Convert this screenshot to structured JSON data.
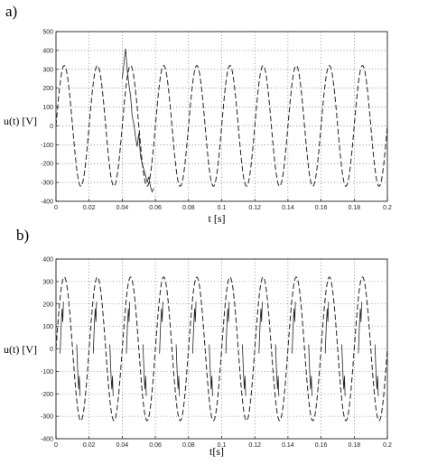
{
  "chart_data": [
    {
      "panel_label": "a)",
      "type": "line",
      "xlabel": "t [s]",
      "ylabel": "u(t) [V]",
      "xlim": [
        0,
        0.2
      ],
      "ylim": [
        -400,
        500
      ],
      "x_ticks": [
        "0",
        "0.02",
        "0.04",
        "0.06",
        "0.08",
        "0.1",
        "0.12",
        "0.14",
        "0.16",
        "0.18",
        "0.2"
      ],
      "y_ticks": [
        "500",
        "400",
        "300",
        "200",
        "100",
        "0",
        "-100",
        "-200",
        "-300",
        "-400"
      ],
      "grid": true,
      "series": [
        {
          "style": "dashed",
          "amplitude": 320,
          "frequency_hz": 50,
          "phase_deg": 0,
          "x_range": [
            0,
            0.2
          ]
        },
        {
          "style": "solid",
          "points": [
            [
              0.04,
              250
            ],
            [
              0.041,
              330
            ],
            [
              0.042,
              410
            ],
            [
              0.043,
              300
            ],
            [
              0.044,
              220
            ],
            [
              0.045,
              160
            ],
            [
              0.046,
              50
            ],
            [
              0.047,
              10
            ],
            [
              0.048,
              -60
            ],
            [
              0.049,
              -110
            ],
            [
              0.05,
              -40
            ],
            [
              0.051,
              -160
            ],
            [
              0.052,
              -200
            ],
            [
              0.053,
              -230
            ],
            [
              0.054,
              -260
            ],
            [
              0.055,
              -300
            ],
            [
              0.056,
              -270
            ],
            [
              0.057,
              -320
            ],
            [
              0.058,
              -350
            ],
            [
              0.059,
              -330
            ]
          ]
        }
      ]
    },
    {
      "panel_label": "b)",
      "type": "line",
      "xlabel": "t[s]",
      "ylabel": "u(t) [V]",
      "xlim": [
        0,
        0.2
      ],
      "ylim": [
        -400,
        400
      ],
      "x_ticks": [
        "0",
        "0.02",
        "0.04",
        "0.06",
        "0.08",
        "0.1",
        "0.12",
        "0.14",
        "0.16",
        "0.18",
        "0.2"
      ],
      "y_ticks": [
        "400",
        "300",
        "200",
        "100",
        "0",
        "-100",
        "-200",
        "-300",
        "-400"
      ],
      "grid": true,
      "series": [
        {
          "style": "dashed",
          "amplitude": 320,
          "frequency_hz": 50,
          "phase_deg": 0,
          "x_range": [
            0,
            0.2
          ]
        },
        {
          "style": "solid",
          "periodic_notch": {
            "period": 0.01,
            "offset": 0.0025,
            "values": [
              -20,
              60,
              130,
              180,
              120,
              210
            ]
          }
        }
      ]
    }
  ]
}
